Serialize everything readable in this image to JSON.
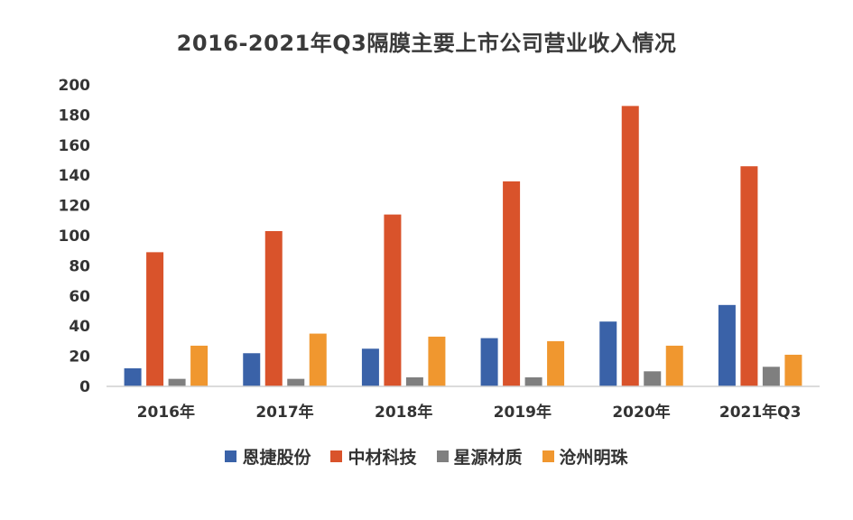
{
  "chart_data": {
    "type": "bar",
    "title": "2016-2021年Q3隔膜主要上市公司营业收入情况",
    "xlabel": "",
    "ylabel": "",
    "categories": [
      "2016年",
      "2017年",
      "2018年",
      "2019年",
      "2020年",
      "2021年Q3"
    ],
    "ylim": [
      0,
      200
    ],
    "yticks": [
      0,
      20,
      40,
      60,
      80,
      100,
      120,
      140,
      160,
      180,
      200
    ],
    "grid": false,
    "legend_position": "bottom",
    "series": [
      {
        "name": "恩捷股份",
        "color": "#3a62a8",
        "values": [
          12,
          22,
          25,
          32,
          43,
          54
        ]
      },
      {
        "name": "中材科技",
        "color": "#d9532b",
        "values": [
          89,
          103,
          114,
          136,
          186,
          146
        ]
      },
      {
        "name": "星源材质",
        "color": "#7f7f7f",
        "values": [
          5,
          5,
          6,
          6,
          10,
          13
        ]
      },
      {
        "name": "沧州明珠",
        "color": "#f0972f",
        "values": [
          27,
          35,
          33,
          30,
          27,
          21
        ]
      }
    ]
  }
}
